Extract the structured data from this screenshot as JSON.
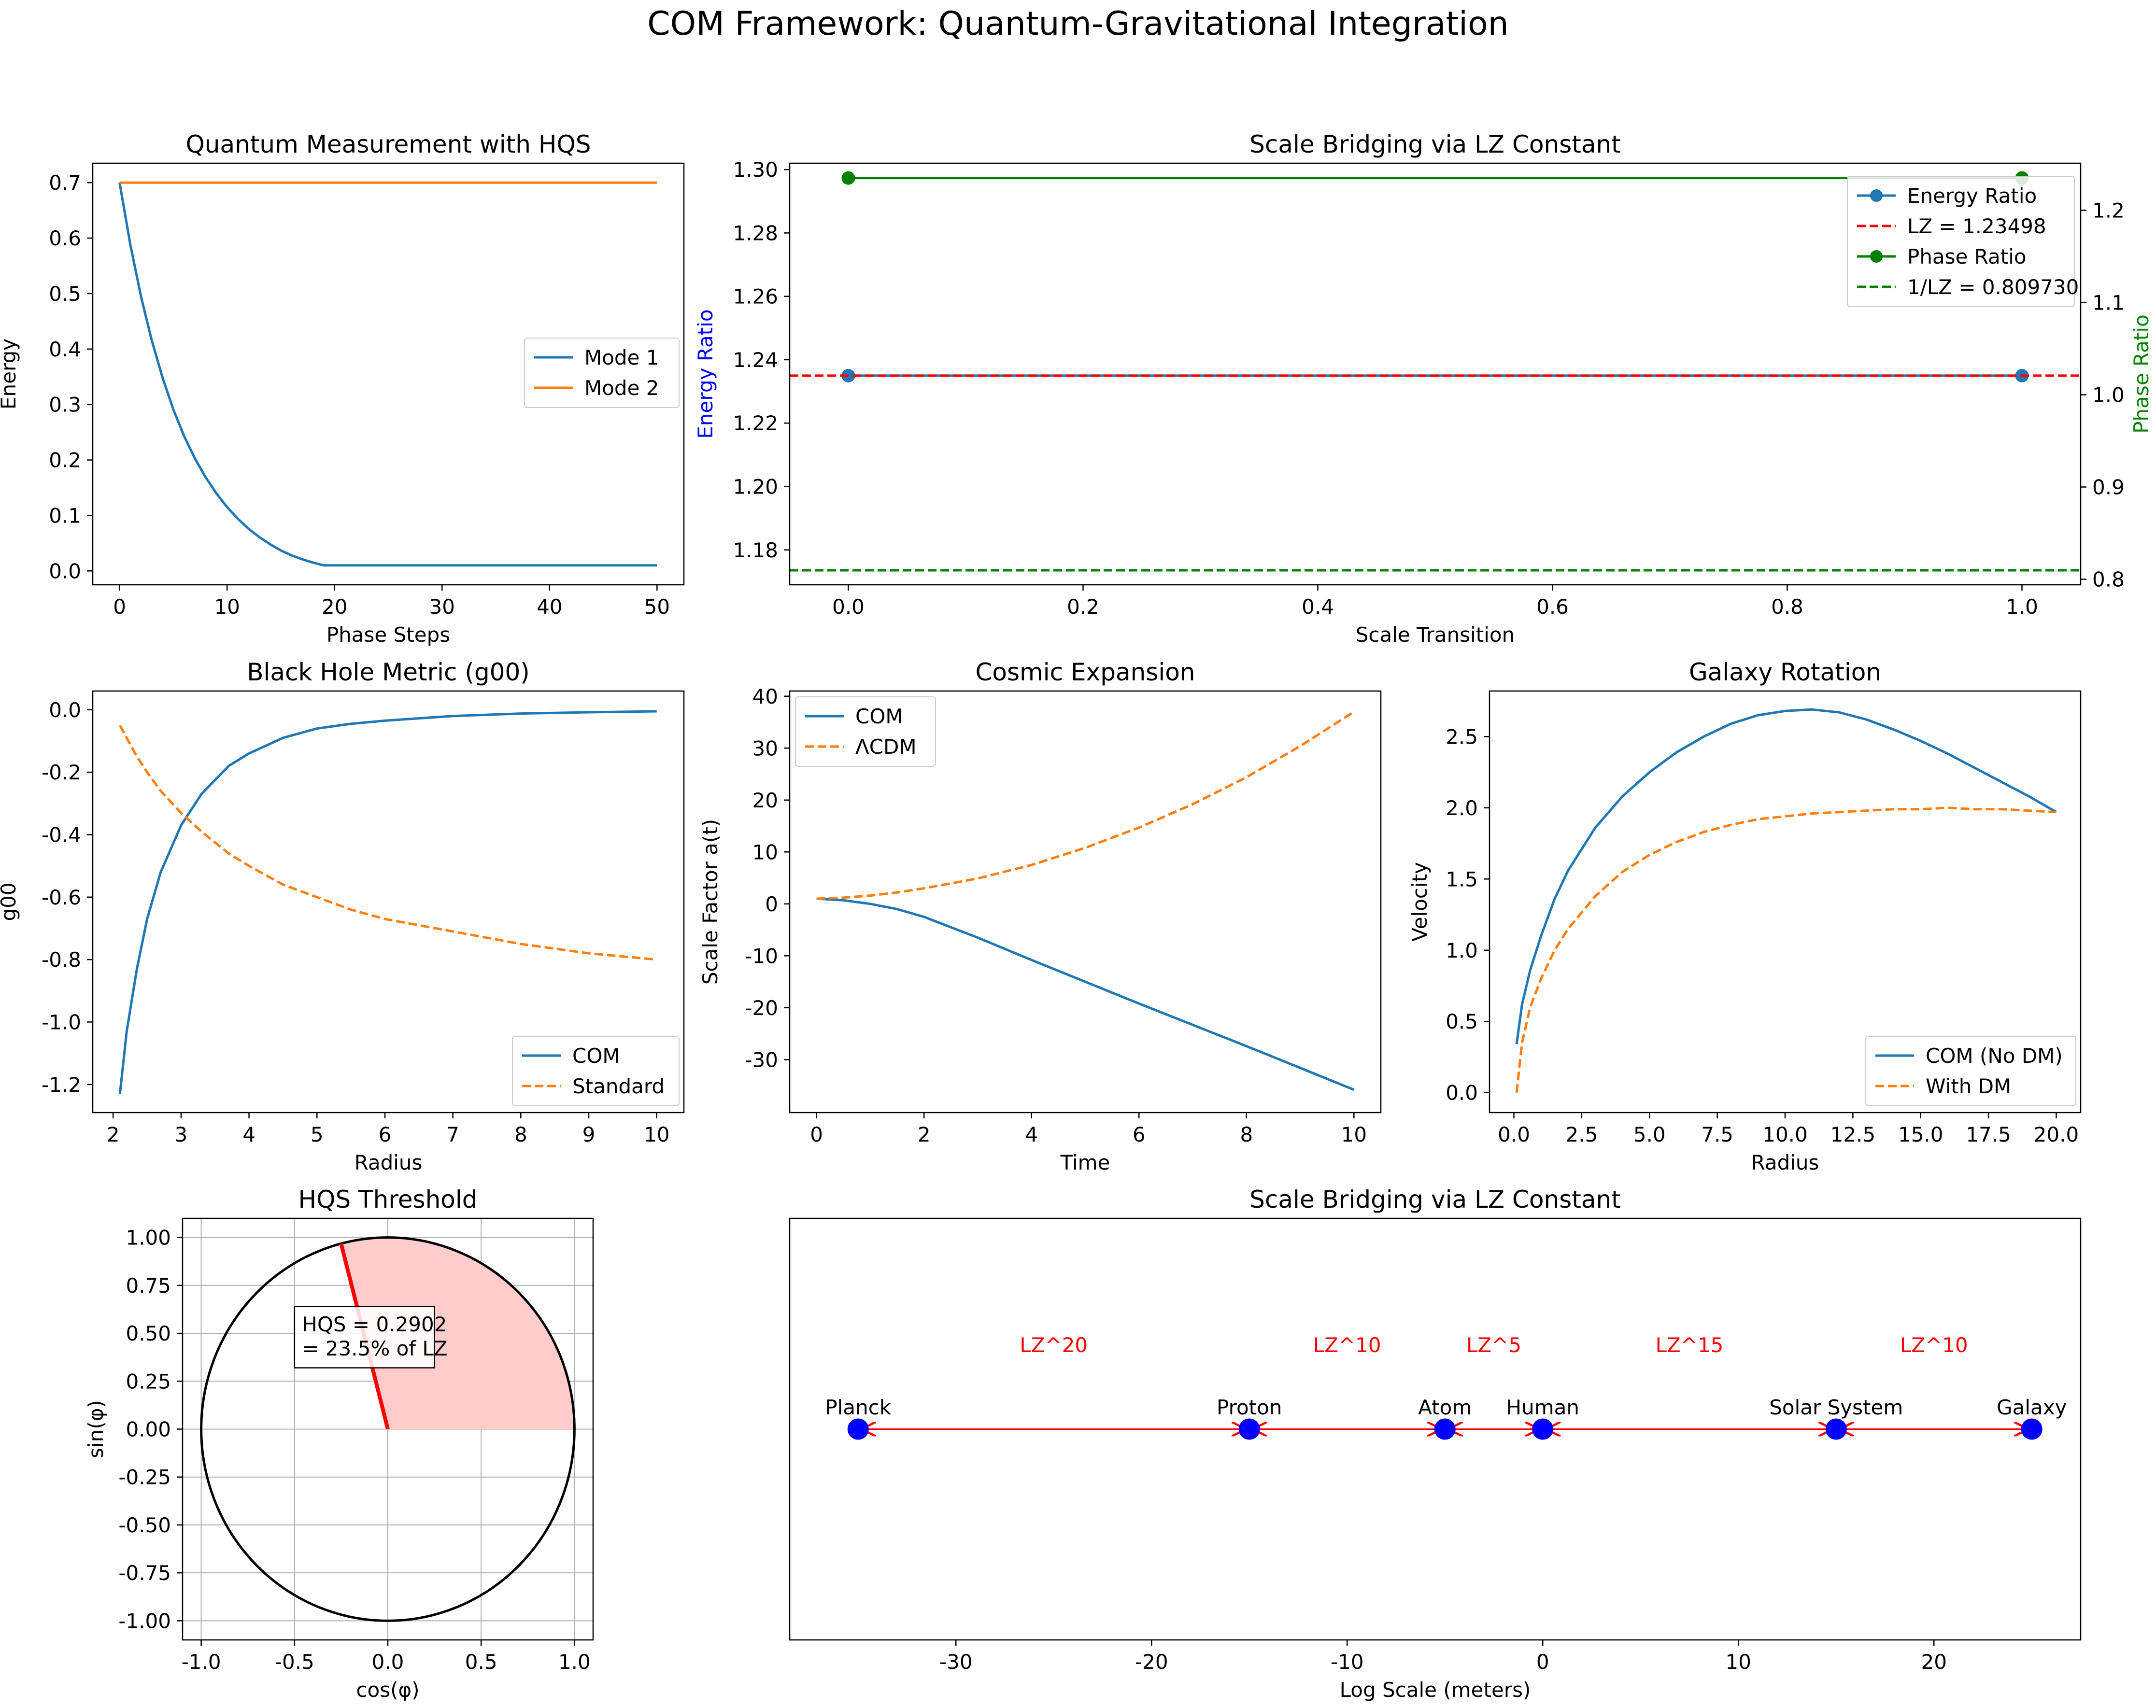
{
  "figure": {
    "suptitle": "COM Framework: Quantum-Gravitational Integration"
  },
  "colors": {
    "blue": "#1f77b4",
    "orange": "#ff7f0e",
    "red": "#ff0000",
    "green": "#008000",
    "marker_blue": "#0000ff",
    "wedge_fill": "#ffcccc"
  },
  "chart_data": [
    {
      "id": "quantum",
      "type": "line",
      "title": "Quantum Measurement with HQS",
      "xlabel": "Phase Steps",
      "ylabel": "Energy",
      "xlim": [
        -2.5,
        52.5
      ],
      "ylim": [
        -0.025,
        0.735
      ],
      "xticks": [
        0,
        10,
        20,
        30,
        40,
        50
      ],
      "xtick_labels": [
        "0",
        "10",
        "20",
        "30",
        "40",
        "50"
      ],
      "yticks": [
        0.0,
        0.1,
        0.2,
        0.3,
        0.4,
        0.5,
        0.6,
        0.7
      ],
      "ytick_labels": [
        "0.0",
        "0.1",
        "0.2",
        "0.3",
        "0.4",
        "0.5",
        "0.6",
        "0.7"
      ],
      "legend": "center-right",
      "grid": false,
      "x": [
        0,
        1,
        2,
        3,
        4,
        5,
        6,
        7,
        8,
        9,
        10,
        11,
        12,
        13,
        14,
        15,
        16,
        17,
        18,
        19,
        20,
        25,
        30,
        35,
        40,
        45,
        50
      ],
      "series": [
        {
          "name": "Mode 1",
          "style": "solid",
          "color": "#1f77b4",
          "values": [
            0.7,
            0.588,
            0.494,
            0.415,
            0.348,
            0.291,
            0.243,
            0.203,
            0.169,
            0.14,
            0.115,
            0.094,
            0.076,
            0.061,
            0.048,
            0.037,
            0.028,
            0.021,
            0.015,
            0.01,
            0.01,
            0.01,
            0.01,
            0.01,
            0.01,
            0.01,
            0.01
          ]
        },
        {
          "name": "Mode 2",
          "style": "solid",
          "color": "#ff7f0e",
          "values": [
            0.7,
            0.7,
            0.7,
            0.7,
            0.7,
            0.7,
            0.7,
            0.7,
            0.7,
            0.7,
            0.7,
            0.7,
            0.7,
            0.7,
            0.7,
            0.7,
            0.7,
            0.7,
            0.7,
            0.7,
            0.7,
            0.7,
            0.7,
            0.7,
            0.7,
            0.7,
            0.7
          ]
        }
      ]
    },
    {
      "id": "scale-ratio",
      "type": "line",
      "title": "Scale Bridging via LZ Constant",
      "xlabel": "Scale Transition",
      "ylabel": "Energy Ratio",
      "ylabel_right": "Phase Ratio",
      "xlim": [
        -0.05,
        1.05
      ],
      "ylim": [
        1.169,
        1.302
      ],
      "ylim_right": [
        0.794,
        1.251
      ],
      "xticks": [
        0.0,
        0.2,
        0.4,
        0.6,
        0.8,
        1.0
      ],
      "xtick_labels": [
        "0.0",
        "0.2",
        "0.4",
        "0.6",
        "0.8",
        "1.0"
      ],
      "yticks": [
        1.18,
        1.2,
        1.22,
        1.24,
        1.26,
        1.28,
        1.3
      ],
      "ytick_labels": [
        "1.18",
        "1.20",
        "1.22",
        "1.24",
        "1.26",
        "1.28",
        "1.30"
      ],
      "yticks_right": [
        0.8,
        0.9,
        1.0,
        1.1,
        1.2
      ],
      "ytick_labels_right": [
        "0.8",
        "0.9",
        "1.0",
        "1.1",
        "1.2"
      ],
      "legend": "top-right",
      "grid": false,
      "x": [
        0,
        1
      ],
      "series": [
        {
          "name": "Energy Ratio",
          "axis": "left",
          "style": "solid-markers",
          "color": "#1f77b4",
          "values": [
            1.23498,
            1.23498
          ]
        },
        {
          "name": "LZ = 1.23498",
          "axis": "left",
          "style": "dashed",
          "color": "#ff0000",
          "hline": 1.23498
        },
        {
          "name": "Phase Ratio",
          "axis": "right",
          "style": "solid-markers",
          "color": "#008000",
          "values": [
            1.23498,
            1.23498
          ]
        },
        {
          "name": "1/LZ = 0.809730",
          "axis": "right",
          "style": "dashed",
          "color": "#008000",
          "hline": 0.80973
        }
      ]
    },
    {
      "id": "blackhole",
      "type": "line",
      "title": "Black Hole Metric (g00)",
      "xlabel": "Radius",
      "ylabel": "g00",
      "xlim": [
        1.7,
        10.4
      ],
      "ylim": [
        -1.29,
        0.06
      ],
      "xticks": [
        2,
        3,
        4,
        5,
        6,
        7,
        8,
        9,
        10
      ],
      "xtick_labels": [
        "2",
        "3",
        "4",
        "5",
        "6",
        "7",
        "8",
        "9",
        "10"
      ],
      "yticks": [
        -1.2,
        -1.0,
        -0.8,
        -0.6,
        -0.4,
        -0.2,
        0.0
      ],
      "ytick_labels": [
        "-1.2",
        "-1.0",
        "-0.8",
        "-0.6",
        "-0.4",
        "-0.2",
        "0.0"
      ],
      "legend": "bottom-right",
      "grid": false,
      "x": [
        2.1,
        2.2,
        2.35,
        2.5,
        2.7,
        3.0,
        3.3,
        3.7,
        4.0,
        4.5,
        5.0,
        5.5,
        6.0,
        7.0,
        8.0,
        9.0,
        10.0
      ],
      "series": [
        {
          "name": "COM",
          "style": "solid",
          "color": "#1f77b4",
          "values": [
            -1.23,
            -1.03,
            -0.83,
            -0.67,
            -0.52,
            -0.37,
            -0.27,
            -0.18,
            -0.14,
            -0.09,
            -0.06,
            -0.045,
            -0.035,
            -0.02,
            -0.012,
            -0.008,
            -0.005
          ]
        },
        {
          "name": "Standard",
          "style": "dashed",
          "color": "#ff7f0e",
          "values": [
            -0.05,
            -0.09,
            -0.15,
            -0.2,
            -0.26,
            -0.33,
            -0.39,
            -0.46,
            -0.5,
            -0.56,
            -0.6,
            -0.64,
            -0.67,
            -0.71,
            -0.75,
            -0.78,
            -0.8
          ]
        }
      ]
    },
    {
      "id": "cosmic",
      "type": "line",
      "title": "Cosmic Expansion",
      "xlabel": "Time",
      "ylabel": "Scale Factor a(t)",
      "xlim": [
        -0.5,
        10.5
      ],
      "ylim": [
        -40.2,
        41.0
      ],
      "xticks": [
        0,
        2,
        4,
        6,
        8,
        10
      ],
      "xtick_labels": [
        "0",
        "2",
        "4",
        "6",
        "8",
        "10"
      ],
      "yticks": [
        -30,
        -20,
        -10,
        0,
        10,
        20,
        30,
        40
      ],
      "ytick_labels": [
        "-30",
        "-20",
        "-10",
        "0",
        "10",
        "20",
        "30",
        "40"
      ],
      "legend": "top-left",
      "grid": false,
      "x": [
        0,
        0.5,
        1,
        1.5,
        2,
        3,
        4,
        5,
        6,
        7,
        8,
        9,
        10
      ],
      "series": [
        {
          "name": "COM",
          "style": "solid",
          "color": "#1f77b4",
          "values": [
            1.0,
            0.7,
            0.0,
            -1.0,
            -2.5,
            -6.5,
            -10.8,
            -15.0,
            -19.2,
            -23.3,
            -27.4,
            -31.6,
            -35.8
          ]
        },
        {
          "name": "ΛCDM",
          "style": "dashed",
          "color": "#ff7f0e",
          "values": [
            1.0,
            1.2,
            1.6,
            2.2,
            3.0,
            4.9,
            7.5,
            10.8,
            14.7,
            19.2,
            24.4,
            30.4,
            37.0
          ]
        }
      ]
    },
    {
      "id": "galaxy",
      "type": "line",
      "title": "Galaxy Rotation",
      "xlabel": "Radius",
      "ylabel": "Velocity",
      "xlim": [
        -0.9,
        20.9
      ],
      "ylim": [
        -0.14,
        2.82
      ],
      "xticks": [
        0,
        2.5,
        5,
        7.5,
        10,
        12.5,
        15,
        17.5,
        20
      ],
      "xtick_labels": [
        "0.0",
        "2.5",
        "5.0",
        "7.5",
        "10.0",
        "12.5",
        "15.0",
        "17.5",
        "20.0"
      ],
      "yticks": [
        0,
        0.5,
        1.0,
        1.5,
        2.0,
        2.5
      ],
      "ytick_labels": [
        "0.0",
        "0.5",
        "1.0",
        "1.5",
        "2.0",
        "2.5"
      ],
      "legend": "bottom-right",
      "grid": false,
      "x": [
        0.1,
        0.3,
        0.6,
        1.0,
        1.5,
        2.0,
        3.0,
        4.0,
        5.0,
        6.0,
        7.0,
        8.0,
        9.0,
        10.0,
        11.0,
        12.0,
        13.0,
        14.0,
        15.0,
        16.0,
        17.0,
        18.0,
        19.0,
        20.0
      ],
      "series": [
        {
          "name": "COM (No DM)",
          "style": "solid",
          "color": "#1f77b4",
          "values": [
            0.34,
            0.62,
            0.86,
            1.1,
            1.36,
            1.56,
            1.86,
            2.08,
            2.25,
            2.39,
            2.5,
            2.59,
            2.65,
            2.68,
            2.69,
            2.67,
            2.62,
            2.55,
            2.47,
            2.38,
            2.28,
            2.18,
            2.08,
            1.97
          ]
        },
        {
          "name": "With DM",
          "style": "dashed",
          "color": "#ff7f0e",
          "values": [
            0.0,
            0.35,
            0.6,
            0.8,
            1.0,
            1.15,
            1.38,
            1.55,
            1.67,
            1.76,
            1.83,
            1.88,
            1.92,
            1.94,
            1.96,
            1.97,
            1.98,
            1.99,
            1.99,
            2.0,
            1.99,
            1.99,
            1.98,
            1.97
          ]
        }
      ]
    },
    {
      "id": "hqs",
      "type": "other",
      "title": "HQS Threshold",
      "xlabel": "cos(φ)",
      "ylabel": "sin(φ)",
      "xlim": [
        -1.1,
        1.1
      ],
      "ylim": [
        -1.1,
        1.1
      ],
      "xticks": [
        -1.0,
        -0.5,
        0.0,
        0.5,
        1.0
      ],
      "xtick_labels": [
        "-1.0",
        "-0.5",
        "0.0",
        "0.5",
        "1.0"
      ],
      "yticks": [
        -1.0,
        -0.75,
        -0.5,
        -0.25,
        0.0,
        0.25,
        0.5,
        0.75,
        1.0
      ],
      "ytick_labels": [
        "-1.00",
        "-0.75",
        "-0.50",
        "-0.25",
        "0.00",
        "0.25",
        "0.50",
        "0.75",
        "1.00"
      ],
      "grid": true,
      "circle_radius": 1.0,
      "threshold_angle_deg": 104.5,
      "annotation_lines": [
        "HQS = 0.2902",
        "= 23.5% of LZ"
      ]
    },
    {
      "id": "scale-ladder",
      "type": "scatter",
      "title": "Scale Bridging via LZ Constant",
      "xlabel": "Log Scale (meters)",
      "xlim": [
        -38.5,
        27.5
      ],
      "ylim": [
        -1,
        1
      ],
      "xticks": [
        -30,
        -20,
        -10,
        0,
        10,
        20
      ],
      "xtick_labels": [
        "-30",
        "-20",
        "-10",
        "0",
        "10",
        "20"
      ],
      "grid": false,
      "points": [
        {
          "label": "Planck",
          "x": -35
        },
        {
          "label": "Proton",
          "x": -15
        },
        {
          "label": "Atom",
          "x": -5
        },
        {
          "label": "Human",
          "x": 0
        },
        {
          "label": "Solar System",
          "x": 15
        },
        {
          "label": "Galaxy",
          "x": 25
        }
      ],
      "arrows": [
        {
          "label": "LZ^20",
          "from": -35,
          "to": -15
        },
        {
          "label": "LZ^10",
          "from": -15,
          "to": -5
        },
        {
          "label": "LZ^5",
          "from": -5,
          "to": 0
        },
        {
          "label": "LZ^15",
          "from": 0,
          "to": 15
        },
        {
          "label": "LZ^10",
          "from": 15,
          "to": 25
        }
      ]
    }
  ]
}
